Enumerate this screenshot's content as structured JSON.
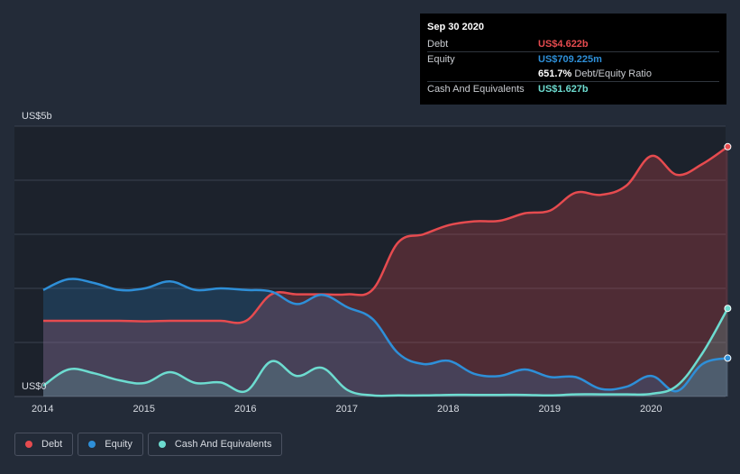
{
  "chart_data": {
    "type": "area",
    "title": "",
    "xlabel": "",
    "ylabel": "",
    "y_unit_labels": [
      "US$5b",
      "US$0"
    ],
    "ylim": [
      0,
      5.0
    ],
    "xlim": [
      2014.0,
      2020.75
    ],
    "x_ticks": [
      "2014",
      "2015",
      "2016",
      "2017",
      "2018",
      "2019",
      "2020"
    ],
    "series": [
      {
        "name": "Debt",
        "color": "#e64b4f",
        "x": [
          2014.0,
          2014.25,
          2014.5,
          2014.75,
          2015.0,
          2015.25,
          2015.5,
          2015.75,
          2016.0,
          2016.25,
          2016.5,
          2016.75,
          2017.0,
          2017.25,
          2017.5,
          2017.75,
          2018.0,
          2018.25,
          2018.5,
          2018.75,
          2019.0,
          2019.25,
          2019.5,
          2019.75,
          2020.0,
          2020.25,
          2020.5,
          2020.75
        ],
        "values": [
          1.4,
          1.4,
          1.4,
          1.4,
          1.39,
          1.4,
          1.4,
          1.4,
          1.4,
          1.89,
          1.89,
          1.89,
          1.89,
          1.98,
          2.85,
          3.0,
          3.17,
          3.24,
          3.25,
          3.39,
          3.44,
          3.77,
          3.73,
          3.9,
          4.45,
          4.1,
          4.3,
          4.62
        ]
      },
      {
        "name": "Equity",
        "color": "#2e8fd8",
        "x": [
          2014.0,
          2014.25,
          2014.5,
          2014.75,
          2015.0,
          2015.25,
          2015.5,
          2015.75,
          2016.0,
          2016.25,
          2016.5,
          2016.75,
          2017.0,
          2017.25,
          2017.5,
          2017.75,
          2018.0,
          2018.25,
          2018.5,
          2018.75,
          2019.0,
          2019.25,
          2019.5,
          2019.75,
          2020.0,
          2020.25,
          2020.5,
          2020.75
        ],
        "values": [
          1.97,
          2.17,
          2.1,
          1.97,
          2.0,
          2.13,
          1.97,
          2.0,
          1.97,
          1.94,
          1.71,
          1.88,
          1.65,
          1.43,
          0.8,
          0.6,
          0.66,
          0.42,
          0.38,
          0.5,
          0.36,
          0.36,
          0.14,
          0.18,
          0.38,
          0.1,
          0.6,
          0.71
        ]
      },
      {
        "name": "Cash And Equivalents",
        "color": "#6ddcd0",
        "x": [
          2014.0,
          2014.25,
          2014.5,
          2014.75,
          2015.0,
          2015.25,
          2015.5,
          2015.75,
          2016.0,
          2016.25,
          2016.5,
          2016.75,
          2017.0,
          2017.25,
          2017.5,
          2017.75,
          2018.0,
          2018.25,
          2018.5,
          2018.75,
          2019.0,
          2019.25,
          2019.5,
          2019.75,
          2020.0,
          2020.25,
          2020.5,
          2020.75
        ],
        "values": [
          0.2,
          0.5,
          0.43,
          0.3,
          0.25,
          0.45,
          0.25,
          0.26,
          0.1,
          0.65,
          0.38,
          0.53,
          0.12,
          0.02,
          0.02,
          0.02,
          0.03,
          0.03,
          0.03,
          0.03,
          0.02,
          0.04,
          0.04,
          0.04,
          0.05,
          0.2,
          0.8,
          1.63
        ]
      }
    ],
    "legend_position": "bottom-left"
  },
  "tooltip": {
    "date": "Sep 30 2020",
    "rows": [
      {
        "label": "Debt",
        "value": "US$4.622b",
        "color": "#e64b4f"
      },
      {
        "label": "Equity",
        "value": "US$709.225m",
        "color": "#2e8fd8"
      },
      {
        "label": "",
        "value": "651.7%",
        "unit": "Debt/Equity Ratio",
        "color": "#ffffff"
      },
      {
        "label": "Cash And Equivalents",
        "value": "US$1.627b",
        "color": "#6ddcd0"
      }
    ]
  },
  "legend": [
    {
      "label": "Debt",
      "color": "#e64b4f"
    },
    {
      "label": "Equity",
      "color": "#2e8fd8"
    },
    {
      "label": "Cash And Equivalents",
      "color": "#6ddcd0"
    }
  ]
}
